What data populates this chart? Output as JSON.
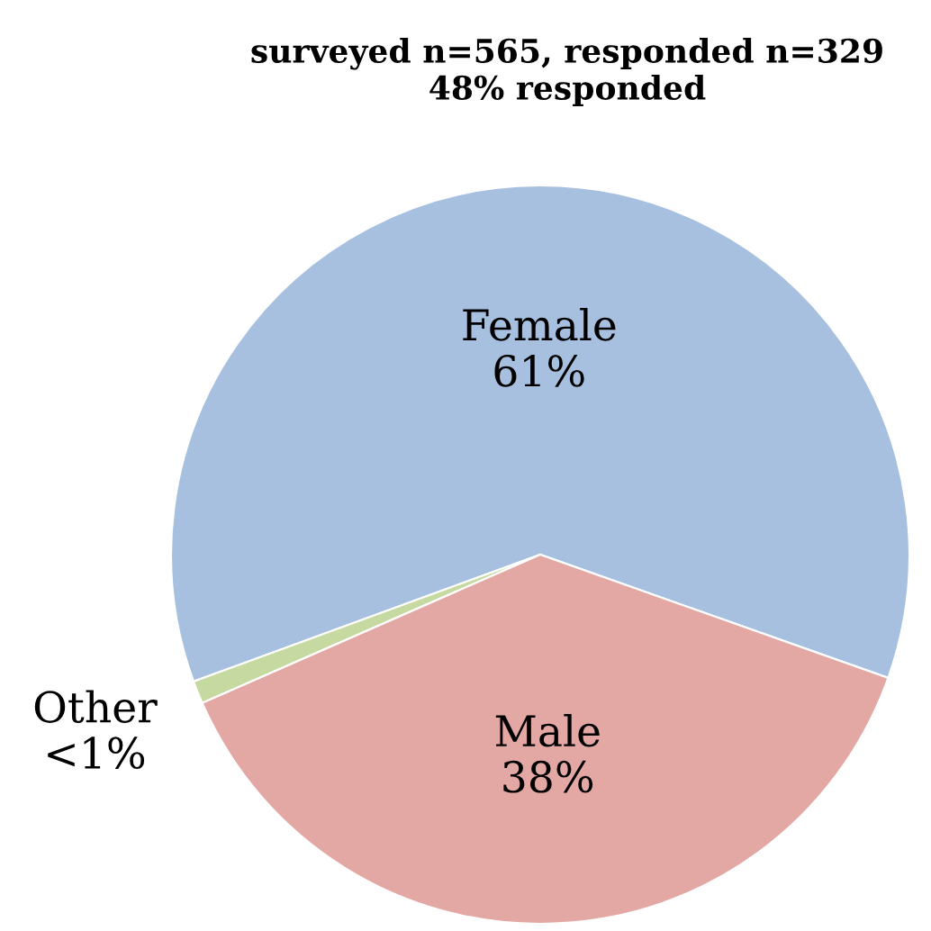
{
  "chart_data": {
    "type": "pie",
    "title": "surveyed n=565, responded n=329\n48% responded",
    "categories": [
      "Female",
      "Other",
      "Male"
    ],
    "values": [
      61,
      1,
      38
    ],
    "value_labels": [
      "61%",
      "<1%",
      "38%"
    ],
    "colors": [
      "#a7c0df",
      "#c6d9a0",
      "#e3a7a4"
    ],
    "legend": false
  }
}
